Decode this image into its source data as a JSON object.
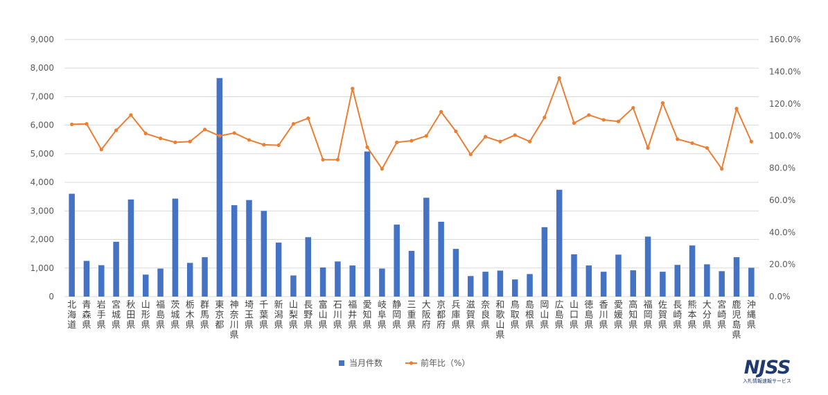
{
  "chart_data": {
    "type": "bar",
    "categories": [
      "北海道",
      "青森県",
      "岩手県",
      "宮城県",
      "秋田県",
      "山形県",
      "福島県",
      "茨城県",
      "栃木県",
      "群馬県",
      "東京都",
      "神奈川県",
      "埼玉県",
      "千葉県",
      "新潟県",
      "山梨県",
      "長野県",
      "富山県",
      "石川県",
      "福井県",
      "愛知県",
      "岐阜県",
      "静岡県",
      "三重県",
      "大阪府",
      "京都府",
      "兵庫県",
      "滋賀県",
      "奈良県",
      "和歌山県",
      "鳥取県",
      "島根県",
      "岡山県",
      "広島県",
      "山口県",
      "徳島県",
      "香川県",
      "愛媛県",
      "高知県",
      "福岡県",
      "佐賀県",
      "長崎県",
      "熊本県",
      "大分県",
      "宮崎県",
      "鹿児島県",
      "沖縄県"
    ],
    "series": [
      {
        "name": "当月件数",
        "type": "bar",
        "axis": "left",
        "color": "#4472c4",
        "values": [
          3600,
          1250,
          1100,
          1920,
          3400,
          770,
          980,
          3430,
          1180,
          1380,
          7650,
          3200,
          3380,
          3000,
          1890,
          740,
          2080,
          1020,
          1230,
          1090,
          5080,
          980,
          2520,
          1600,
          3460,
          2620,
          1670,
          720,
          870,
          910,
          600,
          790,
          2430,
          3740,
          1480,
          1090,
          870,
          1470,
          920,
          2100,
          870,
          1110,
          1790,
          1130,
          890,
          1380,
          1010
        ]
      },
      {
        "name": "前年比（%）",
        "type": "line",
        "axis": "right",
        "color": "#ed7d31",
        "values": [
          107.2,
          107.5,
          91.5,
          103.5,
          113.0,
          101.5,
          98.5,
          96.0,
          96.5,
          104.0,
          100.0,
          101.8,
          97.5,
          94.5,
          94.2,
          107.5,
          111.0,
          85.2,
          85.2,
          129.5,
          93.0,
          79.5,
          96.0,
          97.0,
          100.0,
          115.0,
          102.8,
          88.5,
          99.5,
          96.5,
          100.5,
          96.5,
          111.5,
          136.0,
          108.0,
          113.0,
          110.0,
          109.0,
          117.5,
          92.5,
          120.5,
          98.0,
          95.5,
          92.5,
          79.5,
          117.0,
          96.5
        ]
      }
    ],
    "left_axis": {
      "min": 0,
      "max": 9000,
      "step": 1000,
      "tick_labels": [
        "0",
        "1,000",
        "2,000",
        "3,000",
        "4,000",
        "5,000",
        "6,000",
        "7,000",
        "8,000",
        "9,000"
      ]
    },
    "right_axis": {
      "min": 0,
      "max": 160,
      "step": 20,
      "tick_labels": [
        "0.0%",
        "20.0%",
        "40.0%",
        "60.0%",
        "80.0%",
        "100.0%",
        "120.0%",
        "140.0%",
        "160.0%"
      ]
    },
    "grid": true,
    "legend_position": "bottom",
    "title": "",
    "xlabel": "",
    "ylabel": ""
  },
  "logo": {
    "text": "NJSS",
    "subtitle": "入札情報速報サービス"
  },
  "colors": {
    "grid": "#d9d9d9",
    "axis_text": "#595959"
  }
}
